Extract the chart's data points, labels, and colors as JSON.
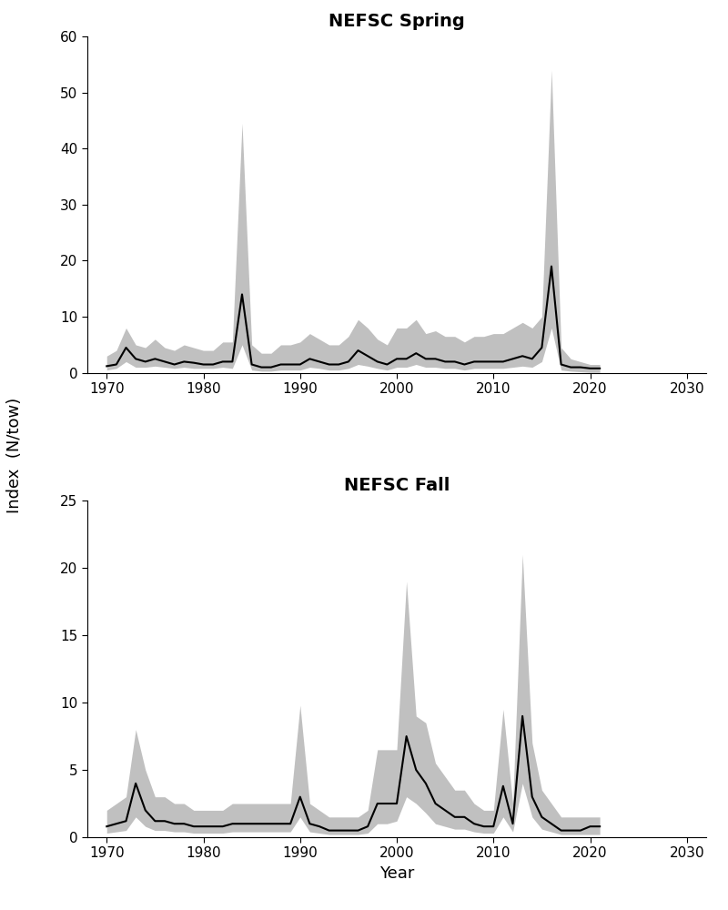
{
  "title1": "NEFSC Spring",
  "title2": "NEFSC Fall",
  "ylabel": "Index  (N/tow)",
  "xlabel": "Year",
  "xlim": [
    1968,
    2032
  ],
  "xticks": [
    1970,
    1980,
    1990,
    2000,
    2010,
    2020,
    2030
  ],
  "spring_years": [
    1970,
    1971,
    1972,
    1973,
    1974,
    1975,
    1976,
    1977,
    1978,
    1979,
    1980,
    1981,
    1982,
    1983,
    1984,
    1985,
    1986,
    1987,
    1988,
    1989,
    1990,
    1991,
    1992,
    1993,
    1994,
    1995,
    1996,
    1997,
    1998,
    1999,
    2000,
    2001,
    2002,
    2003,
    2004,
    2005,
    2006,
    2007,
    2008,
    2009,
    2010,
    2011,
    2012,
    2013,
    2014,
    2015,
    2016,
    2017,
    2018,
    2019,
    2020,
    2021
  ],
  "spring_mean": [
    1.2,
    1.5,
    4.5,
    2.5,
    2.0,
    2.5,
    2.0,
    1.5,
    2.0,
    1.8,
    1.5,
    1.5,
    2.0,
    2.0,
    14.0,
    1.5,
    1.0,
    1.0,
    1.5,
    1.5,
    1.5,
    2.5,
    2.0,
    1.5,
    1.5,
    2.0,
    4.0,
    3.0,
    2.0,
    1.5,
    2.5,
    2.5,
    3.5,
    2.5,
    2.5,
    2.0,
    2.0,
    1.5,
    2.0,
    2.0,
    2.0,
    2.0,
    2.5,
    3.0,
    2.5,
    4.5,
    19.0,
    1.5,
    1.0,
    1.0,
    0.8,
    0.8
  ],
  "spring_lower": [
    0.5,
    0.8,
    2.0,
    1.0,
    1.0,
    1.2,
    1.0,
    0.8,
    1.0,
    0.8,
    0.8,
    0.8,
    1.0,
    0.8,
    5.0,
    0.5,
    0.3,
    0.3,
    0.5,
    0.5,
    0.5,
    1.0,
    0.8,
    0.5,
    0.5,
    0.8,
    1.5,
    1.2,
    0.8,
    0.5,
    1.0,
    1.0,
    1.5,
    1.0,
    1.0,
    0.8,
    0.8,
    0.5,
    0.8,
    0.8,
    0.8,
    0.8,
    1.0,
    1.2,
    1.0,
    2.0,
    8.0,
    0.5,
    0.3,
    0.2,
    0.1,
    0.1
  ],
  "spring_upper": [
    3.0,
    4.0,
    8.0,
    5.0,
    4.5,
    6.0,
    4.5,
    4.0,
    5.0,
    4.5,
    4.0,
    4.0,
    5.5,
    5.5,
    44.5,
    5.0,
    3.5,
    3.5,
    5.0,
    5.0,
    5.5,
    7.0,
    6.0,
    5.0,
    5.0,
    6.5,
    9.5,
    8.0,
    6.0,
    5.0,
    8.0,
    8.0,
    9.5,
    7.0,
    7.5,
    6.5,
    6.5,
    5.5,
    6.5,
    6.5,
    7.0,
    7.0,
    8.0,
    9.0,
    8.0,
    10.0,
    54.0,
    4.5,
    2.5,
    2.0,
    1.5,
    1.5
  ],
  "fall_years": [
    1970,
    1971,
    1972,
    1973,
    1974,
    1975,
    1976,
    1977,
    1978,
    1979,
    1980,
    1981,
    1982,
    1983,
    1984,
    1985,
    1986,
    1987,
    1988,
    1989,
    1990,
    1991,
    1992,
    1993,
    1994,
    1995,
    1996,
    1997,
    1998,
    1999,
    2000,
    2001,
    2002,
    2003,
    2004,
    2005,
    2006,
    2007,
    2008,
    2009,
    2010,
    2011,
    2012,
    2013,
    2014,
    2015,
    2016,
    2017,
    2018,
    2019,
    2020,
    2021
  ],
  "fall_mean": [
    0.8,
    1.0,
    1.2,
    4.0,
    2.0,
    1.2,
    1.2,
    1.0,
    1.0,
    0.8,
    0.8,
    0.8,
    0.8,
    1.0,
    1.0,
    1.0,
    1.0,
    1.0,
    1.0,
    1.0,
    3.0,
    1.0,
    0.8,
    0.5,
    0.5,
    0.5,
    0.5,
    0.8,
    2.5,
    2.5,
    2.5,
    7.5,
    5.0,
    4.0,
    2.5,
    2.0,
    1.5,
    1.5,
    1.0,
    0.8,
    0.8,
    3.8,
    1.0,
    9.0,
    3.0,
    1.5,
    1.0,
    0.5,
    0.5,
    0.5,
    0.8,
    0.8
  ],
  "fall_lower": [
    0.3,
    0.4,
    0.5,
    1.5,
    0.8,
    0.5,
    0.5,
    0.4,
    0.4,
    0.3,
    0.3,
    0.3,
    0.3,
    0.4,
    0.4,
    0.4,
    0.4,
    0.4,
    0.4,
    0.4,
    1.5,
    0.4,
    0.3,
    0.2,
    0.2,
    0.2,
    0.2,
    0.3,
    1.0,
    1.0,
    1.2,
    3.0,
    2.5,
    1.8,
    1.0,
    0.8,
    0.6,
    0.6,
    0.4,
    0.3,
    0.3,
    1.5,
    0.4,
    4.0,
    1.5,
    0.6,
    0.4,
    0.2,
    0.2,
    0.2,
    0.2,
    0.2
  ],
  "fall_upper": [
    2.0,
    2.5,
    3.0,
    8.0,
    5.0,
    3.0,
    3.0,
    2.5,
    2.5,
    2.0,
    2.0,
    2.0,
    2.0,
    2.5,
    2.5,
    2.5,
    2.5,
    2.5,
    2.5,
    2.5,
    9.8,
    2.5,
    2.0,
    1.5,
    1.5,
    1.5,
    1.5,
    2.0,
    6.5,
    6.5,
    6.5,
    19.0,
    9.0,
    8.5,
    5.5,
    4.5,
    3.5,
    3.5,
    2.5,
    2.0,
    2.0,
    9.5,
    2.5,
    21.0,
    7.0,
    3.5,
    2.5,
    1.5,
    1.5,
    1.5,
    1.5,
    1.5
  ],
  "spring_ylim": [
    0,
    60
  ],
  "spring_yticks": [
    0,
    10,
    20,
    30,
    40,
    50,
    60
  ],
  "fall_ylim": [
    0,
    25
  ],
  "fall_yticks": [
    0,
    5,
    10,
    15,
    20,
    25
  ],
  "fill_color": "#c0c0c0",
  "line_color": "#000000",
  "background_color": "#ffffff",
  "line_width": 1.5
}
